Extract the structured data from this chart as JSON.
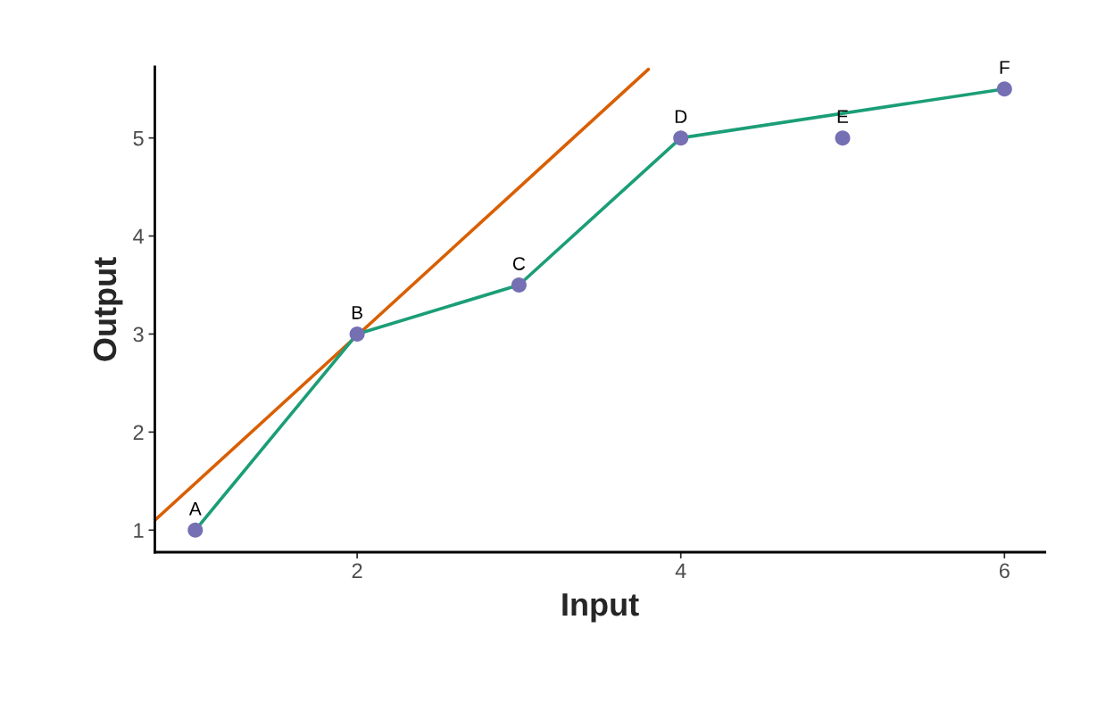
{
  "chart_data": {
    "type": "scatter",
    "xlabel": "Input",
    "ylabel": "Output",
    "xlim": [
      0.75,
      6.25
    ],
    "ylim": [
      0.775,
      5.725
    ],
    "xticks": [
      2,
      4,
      6
    ],
    "yticks": [
      1,
      2,
      3,
      4,
      5
    ],
    "grid": false,
    "series": [
      {
        "type": "line",
        "color": "#d95f02",
        "x": [
          0.75,
          3.8
        ],
        "values": [
          1.1,
          5.7
        ]
      },
      {
        "type": "line",
        "color": "#1b9e77",
        "x": [
          1,
          2,
          3,
          4,
          6
        ],
        "values": [
          1,
          3,
          3.5,
          5,
          5.5
        ]
      },
      {
        "marker": "circle",
        "color": "#7570b3",
        "x": [
          1,
          2,
          3,
          4,
          5,
          6
        ],
        "values": [
          1,
          3,
          3.5,
          5,
          5,
          5.5
        ]
      }
    ],
    "annotations": [
      {
        "text": "A",
        "x": 1,
        "y": 1
      },
      {
        "text": "B",
        "x": 2,
        "y": 3
      },
      {
        "text": "C",
        "x": 3,
        "y": 3.5
      },
      {
        "text": "D",
        "x": 4,
        "y": 5
      },
      {
        "text": "E",
        "x": 5,
        "y": 5
      },
      {
        "text": "F",
        "x": 6,
        "y": 5.5
      }
    ]
  }
}
